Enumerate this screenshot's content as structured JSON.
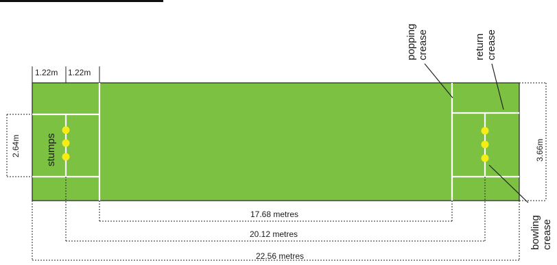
{
  "labels": {
    "top_left_1": "1.22m",
    "top_left_2": "1.22m",
    "width_left": "2.64m",
    "width_right": "3.66m",
    "stumps": "stumps",
    "popping_1": "popping",
    "popping_2": "crease",
    "return_1": "return",
    "return_2": "crease",
    "bowling_1": "bowling",
    "bowling_2": "crease",
    "dist_1": "17.68 metres",
    "dist_2": "20.12 metres",
    "dist_3": "22.56 metres"
  },
  "colors": {
    "pitch": "#7dc142",
    "lines": "#ffffff",
    "stump": "#f7ec13",
    "outline": "#222222"
  }
}
